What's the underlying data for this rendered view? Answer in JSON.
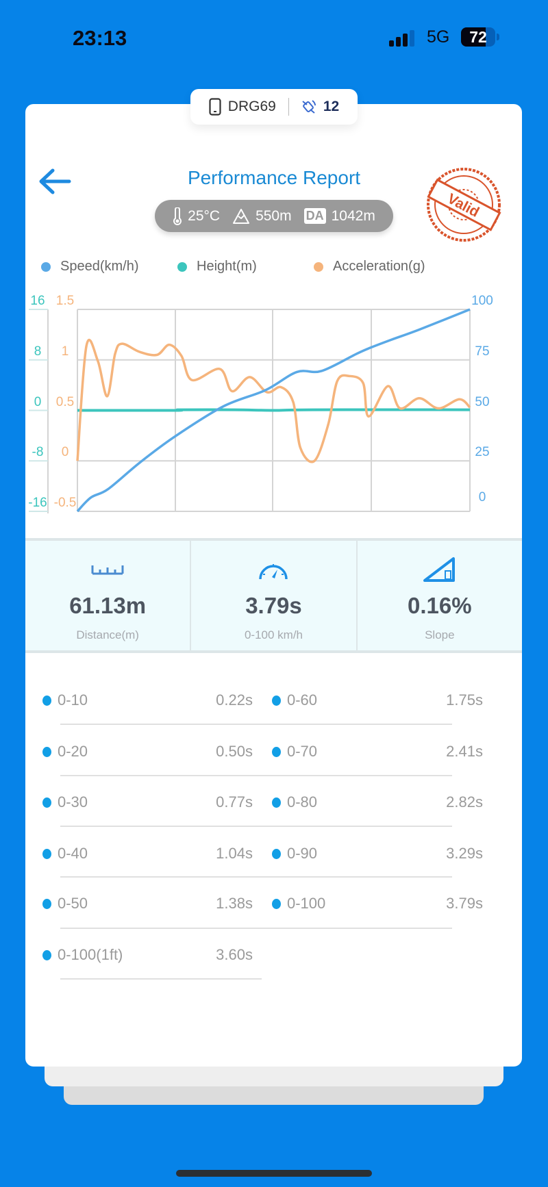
{
  "status_bar": {
    "time": "23:13",
    "network": "5G",
    "battery": "72"
  },
  "device": {
    "name": "DRG69",
    "satellites": "12"
  },
  "header": {
    "title": "Performance Report",
    "stamp": "Valid"
  },
  "conditions": {
    "temperature": "25°C",
    "altitude": "550m",
    "da_label": "DA",
    "density_altitude": "1042m"
  },
  "colors": {
    "background": "#0683e8",
    "speed": "#5aa9e6",
    "height": "#3cc5bd",
    "acceleration": "#f5b47c",
    "accent": "#1a8ad4"
  },
  "chart_data": {
    "type": "line",
    "legend": [
      "Speed(km/h)",
      "Height(m)",
      "Acceleration(g)"
    ],
    "legend_position": "top",
    "grid": true,
    "axes": {
      "left_height": {
        "ticks": [
          "16",
          "8",
          "0",
          "-8",
          "-16"
        ],
        "range": [
          -16,
          16
        ]
      },
      "left_acceleration": {
        "ticks": [
          "1.5",
          "1",
          "0.5",
          "0",
          "-0.5"
        ],
        "range": [
          -0.5,
          1.5
        ]
      },
      "right_speed": {
        "ticks": [
          "100",
          "75",
          "50",
          "25",
          "0"
        ],
        "range": [
          0,
          100
        ]
      }
    },
    "x_range": [
      0,
      1
    ],
    "series": [
      {
        "name": "Speed(km/h)",
        "axis": "right_speed",
        "points": [
          [
            0,
            0
          ],
          [
            0.034,
            6.8
          ],
          [
            0.078,
            11
          ],
          [
            0.158,
            24
          ],
          [
            0.248,
            37
          ],
          [
            0.372,
            52
          ],
          [
            0.479,
            60
          ],
          [
            0.559,
            69
          ],
          [
            0.622,
            69.5
          ],
          [
            0.711,
            78
          ],
          [
            0.746,
            81
          ],
          [
            0.8,
            85
          ],
          [
            0.871,
            90
          ],
          [
            1,
            100
          ]
        ]
      },
      {
        "name": "Height(m)",
        "axis": "left_height",
        "points": [
          [
            0,
            0
          ],
          [
            0.25,
            0
          ],
          [
            0.26,
            0.1
          ],
          [
            0.4,
            0.1
          ],
          [
            0.5,
            0
          ],
          [
            0.6,
            0.1
          ],
          [
            1,
            0.1
          ]
        ]
      },
      {
        "name": "Acceleration(g)",
        "axis": "left_acceleration",
        "points": [
          [
            0,
            0
          ],
          [
            0.023,
            1.14
          ],
          [
            0.052,
            0.99
          ],
          [
            0.076,
            0.64
          ],
          [
            0.096,
            1.06
          ],
          [
            0.114,
            1.16
          ],
          [
            0.158,
            1.08
          ],
          [
            0.203,
            1.05
          ],
          [
            0.234,
            1.15
          ],
          [
            0.265,
            1.04
          ],
          [
            0.292,
            0.8
          ],
          [
            0.363,
            0.91
          ],
          [
            0.394,
            0.69
          ],
          [
            0.439,
            0.83
          ],
          [
            0.483,
            0.68
          ],
          [
            0.519,
            0.73
          ],
          [
            0.55,
            0.58
          ],
          [
            0.568,
            0.13
          ],
          [
            0.604,
            0.0
          ],
          [
            0.639,
            0.36
          ],
          [
            0.662,
            0.79
          ],
          [
            0.693,
            0.84
          ],
          [
            0.728,
            0.77
          ],
          [
            0.742,
            0.44
          ],
          [
            0.791,
            0.74
          ],
          [
            0.822,
            0.52
          ],
          [
            0.871,
            0.62
          ],
          [
            0.92,
            0.52
          ],
          [
            0.973,
            0.61
          ],
          [
            1,
            0.53
          ]
        ]
      }
    ]
  },
  "stats": [
    {
      "value": "61.13m",
      "label": "Distance(m)"
    },
    {
      "value": "3.79s",
      "label": "0-100 km/h"
    },
    {
      "value": "0.16%",
      "label": "Slope"
    }
  ],
  "splits_left": [
    {
      "label": "0-10",
      "value": "0.22s"
    },
    {
      "label": "0-20",
      "value": "0.50s"
    },
    {
      "label": "0-30",
      "value": "0.77s"
    },
    {
      "label": "0-40",
      "value": "1.04s"
    },
    {
      "label": "0-50",
      "value": "1.38s"
    },
    {
      "label": "0-100(1ft)",
      "value": "3.60s"
    }
  ],
  "splits_right": [
    {
      "label": "0-60",
      "value": "1.75s"
    },
    {
      "label": "0-70",
      "value": "2.41s"
    },
    {
      "label": "0-80",
      "value": "2.82s"
    },
    {
      "label": "0-90",
      "value": "3.29s"
    },
    {
      "label": "0-100",
      "value": "3.79s"
    }
  ]
}
